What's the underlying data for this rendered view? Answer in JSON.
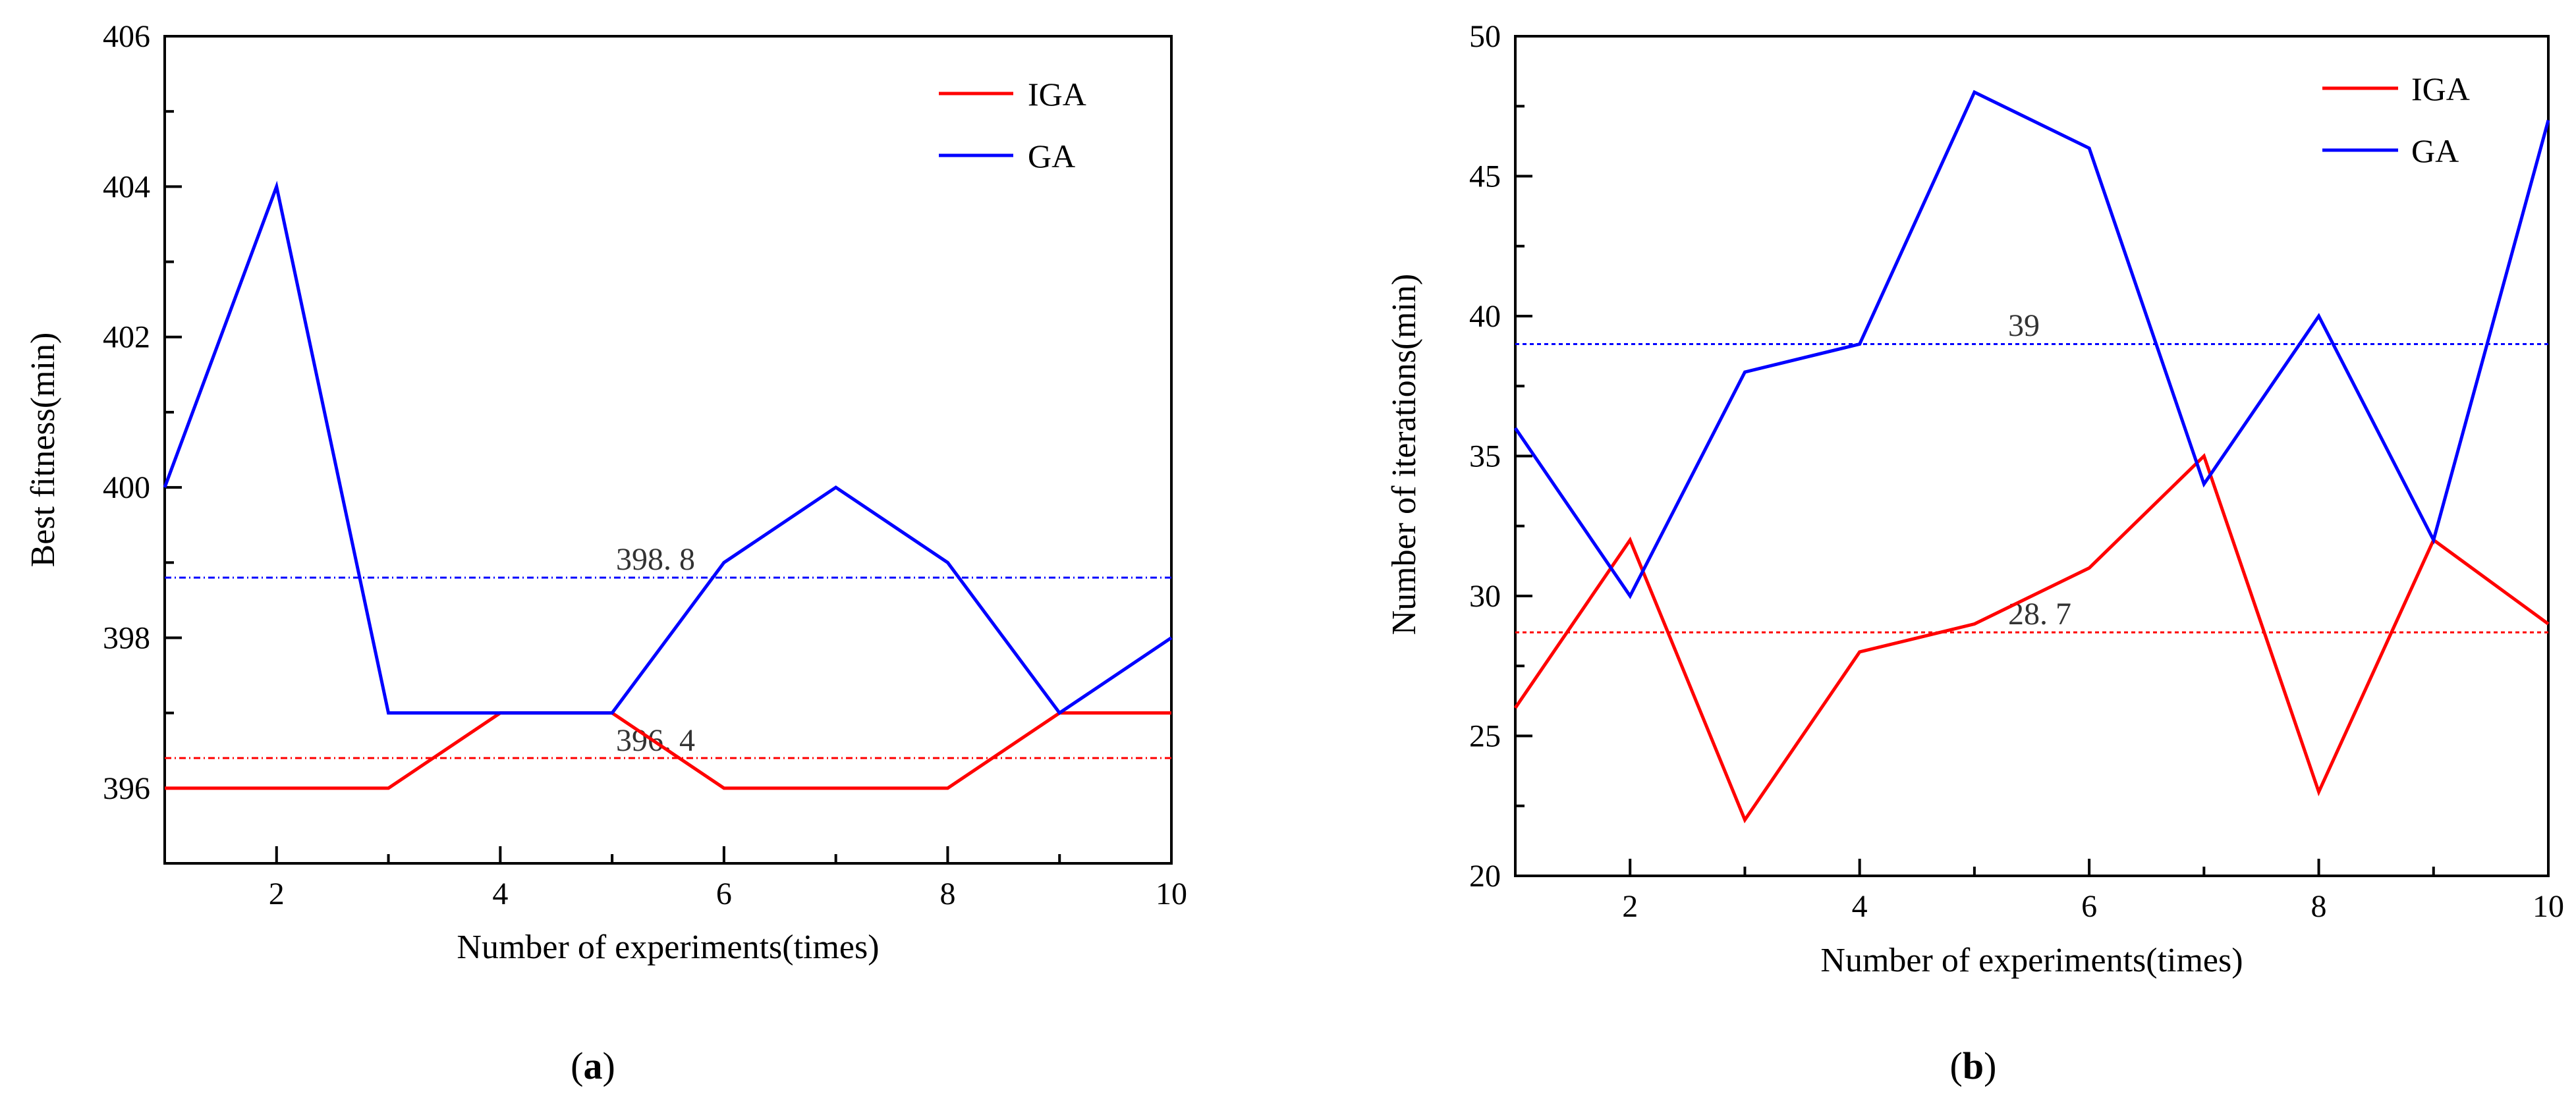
{
  "colors": {
    "IGA": "#ff0000",
    "GA": "#0000ff"
  },
  "chart_data": [
    {
      "type": "line",
      "x": [
        1,
        2,
        3,
        4,
        5,
        6,
        7,
        8,
        9,
        10
      ],
      "series": [
        {
          "name": "IGA",
          "values": [
            396,
            396,
            396,
            397,
            397,
            396,
            396,
            396,
            397,
            397
          ]
        },
        {
          "name": "GA",
          "values": [
            400,
            404,
            397,
            397,
            397,
            399,
            400,
            399,
            397,
            398
          ]
        }
      ],
      "reference_lines": [
        {
          "series": "GA",
          "value": 398.8,
          "label": "398. 8"
        },
        {
          "series": "IGA",
          "value": 396.4,
          "label": "396. 4"
        }
      ],
      "xlabel": "Number of experiments(times)",
      "ylabel": "Best fitness(min)",
      "xlim": [
        1,
        10
      ],
      "ylim": [
        395,
        406
      ],
      "xticks": [
        2,
        4,
        6,
        8,
        10
      ],
      "yticks": [
        396,
        398,
        400,
        402,
        404,
        406
      ],
      "legend": "top-right",
      "caption": {
        "open": "(",
        "letter": "a",
        "close": ")"
      }
    },
    {
      "type": "line",
      "x": [
        1,
        2,
        3,
        4,
        5,
        6,
        7,
        8,
        9,
        10
      ],
      "series": [
        {
          "name": "IGA",
          "values": [
            26,
            32,
            22,
            28,
            29,
            31,
            35,
            23,
            32,
            29
          ]
        },
        {
          "name": "GA",
          "values": [
            36,
            30,
            38,
            39,
            48,
            46,
            34,
            40,
            32,
            47
          ]
        }
      ],
      "reference_lines": [
        {
          "series": "GA",
          "value": 39,
          "label": "39"
        },
        {
          "series": "IGA",
          "value": 28.7,
          "label": "28. 7"
        }
      ],
      "xlabel": "Number of experiments(times)",
      "ylabel": "Number of iterations(min)",
      "xlim": [
        1,
        10
      ],
      "ylim": [
        20,
        50
      ],
      "xticks": [
        2,
        4,
        6,
        8,
        10
      ],
      "yticks": [
        20,
        25,
        30,
        35,
        40,
        45,
        50
      ],
      "legend": "top-right",
      "caption": {
        "open": "(",
        "letter": "b",
        "close": ")"
      }
    }
  ]
}
